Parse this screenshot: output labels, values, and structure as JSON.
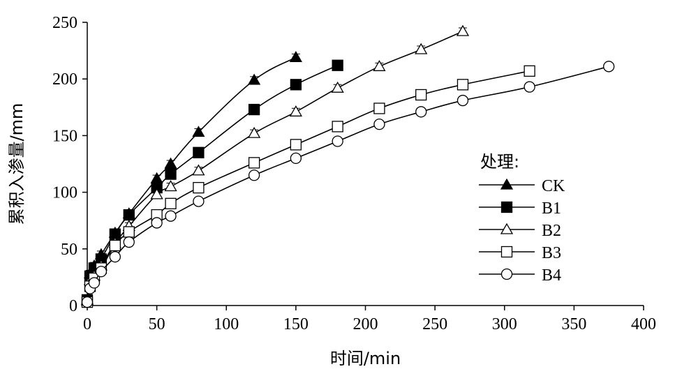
{
  "chart_data": {
    "type": "line",
    "xlabel": "时间/min",
    "ylabel": "累积入渗量/mm",
    "xlim": [
      0,
      400
    ],
    "ylim": [
      0,
      250
    ],
    "x_ticks": [
      "0",
      "50",
      "100",
      "150",
      "200",
      "250",
      "300",
      "350",
      "400"
    ],
    "y_ticks": [
      "0",
      "50",
      "100",
      "150",
      "200",
      "250"
    ],
    "grid": false,
    "legend": {
      "title": "处理:",
      "placement": "right"
    },
    "series": [
      {
        "name": "CK",
        "marker": "filled-triangle",
        "x": [
          0,
          2,
          5,
          10,
          20,
          30,
          50,
          60,
          80,
          120,
          150
        ],
        "y": [
          5,
          28,
          35,
          45,
          64,
          81,
          112,
          125,
          153,
          199,
          219
        ]
      },
      {
        "name": "B1",
        "marker": "filled-square",
        "x": [
          0,
          2,
          5,
          10,
          20,
          30,
          50,
          60,
          80,
          120,
          150,
          180
        ],
        "y": [
          5,
          26,
          33,
          41,
          63,
          80,
          104,
          116,
          135,
          173,
          195,
          212
        ]
      },
      {
        "name": "B2",
        "marker": "open-triangle",
        "x": [
          0,
          2,
          5,
          10,
          20,
          30,
          50,
          60,
          80,
          120,
          150,
          180,
          210,
          240,
          270
        ],
        "y": [
          4,
          22,
          26,
          35,
          55,
          70,
          98,
          105,
          119,
          152,
          171,
          192,
          211,
          226,
          242
        ]
      },
      {
        "name": "B3",
        "marker": "open-square",
        "x": [
          0,
          2,
          5,
          10,
          20,
          30,
          50,
          60,
          80,
          120,
          150,
          180,
          210,
          240,
          270,
          318
        ],
        "y": [
          3,
          17,
          24,
          33,
          53,
          65,
          80,
          90,
          104,
          126,
          142,
          158,
          174,
          186,
          195,
          207
        ]
      },
      {
        "name": "B4",
        "marker": "open-circle",
        "x": [
          0,
          2,
          5,
          10,
          20,
          30,
          50,
          60,
          80,
          120,
          150,
          180,
          210,
          240,
          270,
          318,
          375
        ],
        "y": [
          3,
          15,
          20,
          30,
          43,
          56,
          73,
          79,
          92,
          115,
          130,
          145,
          160,
          171,
          181,
          193,
          211
        ]
      }
    ]
  },
  "colors": {
    "ink": "#000000",
    "background": "#ffffff"
  }
}
